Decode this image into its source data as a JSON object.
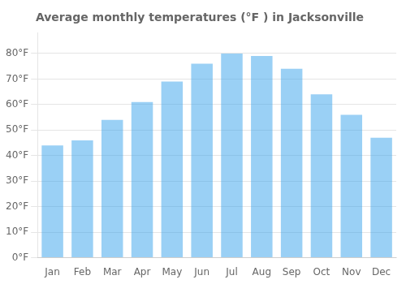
{
  "chart_data": {
    "type": "bar",
    "title": "Average monthly temperatures (°F ) in Jacksonville",
    "categories": [
      "Jan",
      "Feb",
      "Mar",
      "Apr",
      "May",
      "Jun",
      "Jul",
      "Aug",
      "Sep",
      "Oct",
      "Nov",
      "Dec"
    ],
    "values": [
      44,
      46,
      54,
      61,
      69,
      76,
      80,
      79,
      74,
      64,
      56,
      47
    ],
    "ylim": [
      0,
      88
    ],
    "yticks": [
      {
        "value": 0,
        "label": "0°F"
      },
      {
        "value": 10,
        "label": "10°F"
      },
      {
        "value": 20,
        "label": "20°F"
      },
      {
        "value": 30,
        "label": "30°F"
      },
      {
        "value": 40,
        "label": "40°F"
      },
      {
        "value": 50,
        "label": "50°F"
      },
      {
        "value": 60,
        "label": "60°F"
      },
      {
        "value": 70,
        "label": "70°F"
      },
      {
        "value": 80,
        "label": "80°F"
      }
    ],
    "grid": true
  }
}
